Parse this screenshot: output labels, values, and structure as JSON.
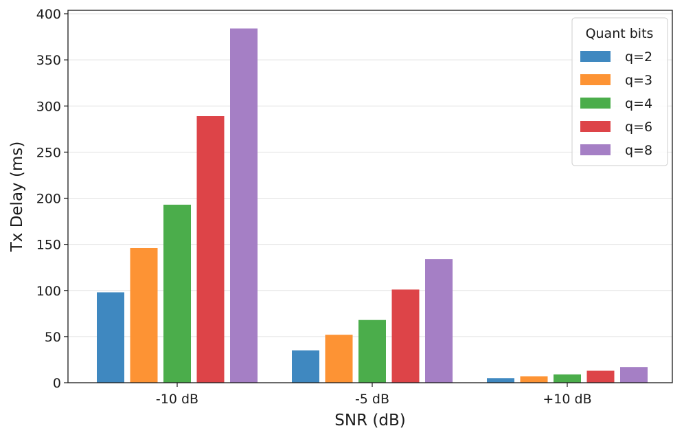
{
  "chart_data": {
    "type": "bar",
    "title": "",
    "xlabel": "SNR (dB)",
    "ylabel": "Tx Delay (ms)",
    "categories": [
      "-10 dB",
      "-5 dB",
      "+10 dB"
    ],
    "ylim": [
      0,
      400
    ],
    "yticks": [
      0,
      50,
      100,
      150,
      200,
      250,
      300,
      350,
      400
    ],
    "grid": "horizontal",
    "legend": {
      "title": "Quant bits",
      "position": "top-right"
    },
    "series": [
      {
        "name": "q=2",
        "color": "#3f88c0",
        "values": [
          98,
          35,
          5
        ]
      },
      {
        "name": "q=3",
        "color": "#fd9334",
        "values": [
          146,
          52,
          7
        ]
      },
      {
        "name": "q=4",
        "color": "#4bad4b",
        "values": [
          193,
          68,
          9
        ]
      },
      {
        "name": "q=6",
        "color": "#dd4448",
        "values": [
          289,
          101,
          13
        ]
      },
      {
        "name": "q=8",
        "color": "#a57fc5",
        "values": [
          384,
          134,
          17
        ]
      }
    ]
  }
}
